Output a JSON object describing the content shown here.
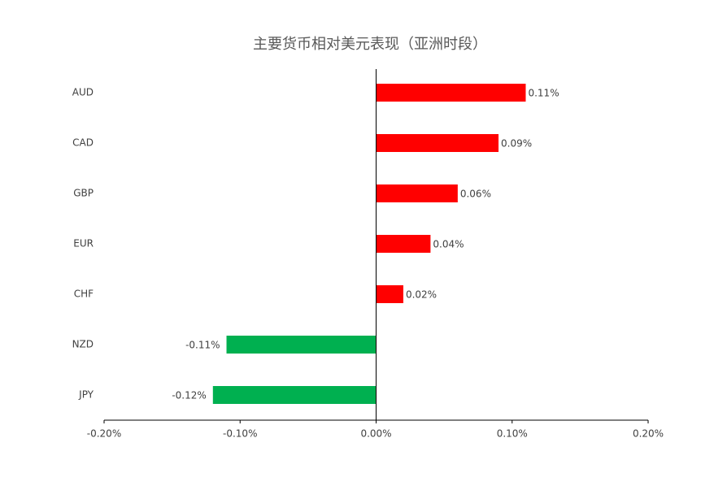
{
  "chart_data": {
    "type": "hbar",
    "title": "主要货币相对美元表现（亚洲时段）",
    "categories": [
      "AUD",
      "CAD",
      "GBP",
      "EUR",
      "CHF",
      "NZD",
      "JPY"
    ],
    "values": [
      0.11,
      0.09,
      0.06,
      0.04,
      0.02,
      -0.11,
      -0.12
    ],
    "value_labels": [
      "0.11%",
      "0.09%",
      "0.06%",
      "0.04%",
      "0.02%",
      "-0.11%",
      "-0.12%"
    ],
    "colors": [
      "#ff0000",
      "#ff0000",
      "#ff0000",
      "#ff0000",
      "#ff0000",
      "#00b050",
      "#00b050"
    ],
    "xlim": [
      -0.2,
      0.2
    ],
    "xticks": [
      {
        "value": -0.2,
        "label": "-0.20%"
      },
      {
        "value": -0.1,
        "label": "-0.10%"
      },
      {
        "value": 0,
        "label": "0.00%"
      },
      {
        "value": 0.1,
        "label": "0.10%"
      },
      {
        "value": 0.2,
        "label": "0.20%"
      }
    ]
  }
}
